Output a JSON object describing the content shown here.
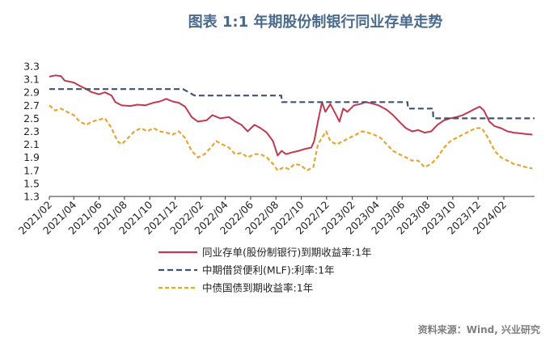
{
  "chart_data": {
    "type": "line",
    "title": "图表 1:1 年期股份制银行同业存单走势",
    "source": "资料来源：Wind, 兴业研究",
    "ylim": [
      1.3,
      3.3
    ],
    "yticks": [
      "1.3",
      "1.5",
      "1.7",
      "1.9",
      "2.1",
      "2.3",
      "2.5",
      "2.7",
      "2.9",
      "3.1",
      "3.3"
    ],
    "xlim": [
      "2021-02-01",
      "2024-04-15"
    ],
    "xticks": [
      {
        "date": "2021-02-01",
        "label": "2021/02"
      },
      {
        "date": "2021-04-01",
        "label": "2021/04"
      },
      {
        "date": "2021-06-01",
        "label": "2021/06"
      },
      {
        "date": "2021-08-01",
        "label": "2021/08"
      },
      {
        "date": "2021-10-01",
        "label": "2021/10"
      },
      {
        "date": "2021-12-01",
        "label": "2021/12"
      },
      {
        "date": "2022-02-01",
        "label": "2022/02"
      },
      {
        "date": "2022-04-01",
        "label": "2022/04"
      },
      {
        "date": "2022-06-01",
        "label": "2022/06"
      },
      {
        "date": "2022-08-01",
        "label": "2022/08"
      },
      {
        "date": "2022-10-01",
        "label": "2022/10"
      },
      {
        "date": "2022-12-01",
        "label": "2022/12"
      },
      {
        "date": "2023-02-01",
        "label": "2023/02"
      },
      {
        "date": "2023-04-01",
        "label": "2023/04"
      },
      {
        "date": "2023-06-01",
        "label": "2023/06"
      },
      {
        "date": "2023-08-01",
        "label": "2023/08"
      },
      {
        "date": "2023-10-01",
        "label": "2023/10"
      },
      {
        "date": "2023-12-01",
        "label": "2023/12"
      },
      {
        "date": "2024-02-01",
        "label": "2024/02"
      }
    ],
    "legend": "bottom",
    "series": [
      {
        "name": "同业存单(股份制银行)到期收益率:1年",
        "color": "#c0394f",
        "style": "solid",
        "points": [
          [
            "2021-02-01",
            3.14
          ],
          [
            "2021-02-15",
            3.16
          ],
          [
            "2021-03-01",
            3.15
          ],
          [
            "2021-03-10",
            3.08
          ],
          [
            "2021-04-01",
            3.05
          ],
          [
            "2021-04-15",
            3.0
          ],
          [
            "2021-05-01",
            2.95
          ],
          [
            "2021-05-15",
            2.9
          ],
          [
            "2021-06-01",
            2.87
          ],
          [
            "2021-06-15",
            2.9
          ],
          [
            "2021-07-01",
            2.85
          ],
          [
            "2021-07-10",
            2.75
          ],
          [
            "2021-07-25",
            2.7
          ],
          [
            "2021-08-15",
            2.69
          ],
          [
            "2021-09-01",
            2.71
          ],
          [
            "2021-09-20",
            2.7
          ],
          [
            "2021-10-10",
            2.74
          ],
          [
            "2021-10-25",
            2.76
          ],
          [
            "2021-11-10",
            2.8
          ],
          [
            "2021-11-25",
            2.76
          ],
          [
            "2021-12-10",
            2.74
          ],
          [
            "2021-12-25",
            2.68
          ],
          [
            "2022-01-10",
            2.52
          ],
          [
            "2022-01-25",
            2.45
          ],
          [
            "2022-02-15",
            2.47
          ],
          [
            "2022-03-01",
            2.55
          ],
          [
            "2022-03-20",
            2.5
          ],
          [
            "2022-04-10",
            2.52
          ],
          [
            "2022-04-25",
            2.45
          ],
          [
            "2022-05-10",
            2.4
          ],
          [
            "2022-05-25",
            2.3
          ],
          [
            "2022-06-10",
            2.4
          ],
          [
            "2022-06-25",
            2.35
          ],
          [
            "2022-07-10",
            2.28
          ],
          [
            "2022-07-25",
            2.15
          ],
          [
            "2022-08-05",
            1.93
          ],
          [
            "2022-08-15",
            2.0
          ],
          [
            "2022-08-25",
            1.95
          ],
          [
            "2022-09-10",
            1.98
          ],
          [
            "2022-09-25",
            2.0
          ],
          [
            "2022-10-10",
            2.03
          ],
          [
            "2022-10-25",
            2.05
          ],
          [
            "2022-11-01",
            2.15
          ],
          [
            "2022-11-10",
            2.45
          ],
          [
            "2022-11-20",
            2.75
          ],
          [
            "2022-11-28",
            2.6
          ],
          [
            "2022-12-10",
            2.72
          ],
          [
            "2022-12-20",
            2.6
          ],
          [
            "2023-01-01",
            2.45
          ],
          [
            "2023-01-10",
            2.65
          ],
          [
            "2023-01-20",
            2.6
          ],
          [
            "2023-02-05",
            2.7
          ],
          [
            "2023-02-20",
            2.72
          ],
          [
            "2023-03-05",
            2.75
          ],
          [
            "2023-03-20",
            2.73
          ],
          [
            "2023-04-05",
            2.7
          ],
          [
            "2023-04-25",
            2.63
          ],
          [
            "2023-05-10",
            2.55
          ],
          [
            "2023-05-25",
            2.45
          ],
          [
            "2023-06-10",
            2.35
          ],
          [
            "2023-06-25",
            2.3
          ],
          [
            "2023-07-10",
            2.32
          ],
          [
            "2023-07-25",
            2.28
          ],
          [
            "2023-08-10",
            2.3
          ],
          [
            "2023-08-25",
            2.4
          ],
          [
            "2023-09-10",
            2.47
          ],
          [
            "2023-09-25",
            2.5
          ],
          [
            "2023-10-10",
            2.52
          ],
          [
            "2023-10-25",
            2.55
          ],
          [
            "2023-11-10",
            2.6
          ],
          [
            "2023-11-25",
            2.65
          ],
          [
            "2023-12-05",
            2.68
          ],
          [
            "2023-12-15",
            2.62
          ],
          [
            "2023-12-28",
            2.45
          ],
          [
            "2024-01-10",
            2.38
          ],
          [
            "2024-01-25",
            2.35
          ],
          [
            "2024-02-10",
            2.3
          ],
          [
            "2024-02-25",
            2.28
          ],
          [
            "2024-03-10",
            2.27
          ],
          [
            "2024-03-25",
            2.26
          ],
          [
            "2024-04-10",
            2.25
          ]
        ]
      },
      {
        "name": "中期借贷便利(MLF):利率:1年",
        "color": "#3f5370",
        "style": "dashed",
        "points": [
          [
            "2021-02-01",
            2.95
          ],
          [
            "2021-12-20",
            2.95
          ],
          [
            "2022-01-17",
            2.85
          ],
          [
            "2022-08-14",
            2.85
          ],
          [
            "2022-08-15",
            2.75
          ],
          [
            "2023-06-14",
            2.75
          ],
          [
            "2023-06-15",
            2.65
          ],
          [
            "2023-08-14",
            2.65
          ],
          [
            "2023-08-15",
            2.5
          ],
          [
            "2024-04-15",
            2.5
          ]
        ]
      },
      {
        "name": "中债国债到期收益率:1年",
        "color": "#e6a630",
        "style": "dashed",
        "points": [
          [
            "2021-02-01",
            2.7
          ],
          [
            "2021-02-15",
            2.62
          ],
          [
            "2021-03-01",
            2.65
          ],
          [
            "2021-03-15",
            2.6
          ],
          [
            "2021-04-01",
            2.55
          ],
          [
            "2021-04-15",
            2.45
          ],
          [
            "2021-05-01",
            2.4
          ],
          [
            "2021-05-15",
            2.45
          ],
          [
            "2021-06-01",
            2.48
          ],
          [
            "2021-06-15",
            2.5
          ],
          [
            "2021-07-01",
            2.35
          ],
          [
            "2021-07-15",
            2.15
          ],
          [
            "2021-07-25",
            2.1
          ],
          [
            "2021-08-10",
            2.2
          ],
          [
            "2021-08-25",
            2.3
          ],
          [
            "2021-09-10",
            2.35
          ],
          [
            "2021-09-25",
            2.3
          ],
          [
            "2021-10-10",
            2.35
          ],
          [
            "2021-10-25",
            2.3
          ],
          [
            "2021-11-10",
            2.28
          ],
          [
            "2021-11-25",
            2.25
          ],
          [
            "2021-12-10",
            2.3
          ],
          [
            "2021-12-25",
            2.2
          ],
          [
            "2022-01-10",
            2.0
          ],
          [
            "2022-01-25",
            1.9
          ],
          [
            "2022-02-10",
            1.95
          ],
          [
            "2022-02-25",
            2.05
          ],
          [
            "2022-03-10",
            2.15
          ],
          [
            "2022-03-25",
            2.1
          ],
          [
            "2022-04-10",
            2.05
          ],
          [
            "2022-04-25",
            1.95
          ],
          [
            "2022-05-10",
            1.97
          ],
          [
            "2022-05-25",
            1.9
          ],
          [
            "2022-06-10",
            1.95
          ],
          [
            "2022-06-25",
            1.95
          ],
          [
            "2022-07-10",
            1.9
          ],
          [
            "2022-07-25",
            1.8
          ],
          [
            "2022-08-05",
            1.7
          ],
          [
            "2022-08-20",
            1.75
          ],
          [
            "2022-09-01",
            1.72
          ],
          [
            "2022-09-15",
            1.8
          ],
          [
            "2022-09-30",
            1.78
          ],
          [
            "2022-10-15",
            1.7
          ],
          [
            "2022-10-30",
            1.75
          ],
          [
            "2022-11-10",
            2.1
          ],
          [
            "2022-11-20",
            2.2
          ],
          [
            "2022-11-30",
            2.3
          ],
          [
            "2022-12-10",
            2.15
          ],
          [
            "2022-12-25",
            2.1
          ],
          [
            "2023-01-10",
            2.15
          ],
          [
            "2023-01-25",
            2.2
          ],
          [
            "2023-02-10",
            2.25
          ],
          [
            "2023-02-25",
            2.3
          ],
          [
            "2023-03-10",
            2.28
          ],
          [
            "2023-03-25",
            2.25
          ],
          [
            "2023-04-10",
            2.2
          ],
          [
            "2023-04-25",
            2.1
          ],
          [
            "2023-05-10",
            2.0
          ],
          [
            "2023-05-25",
            1.95
          ],
          [
            "2023-06-10",
            1.9
          ],
          [
            "2023-06-25",
            1.85
          ],
          [
            "2023-07-10",
            1.85
          ],
          [
            "2023-07-25",
            1.75
          ],
          [
            "2023-08-10",
            1.8
          ],
          [
            "2023-08-25",
            1.9
          ],
          [
            "2023-09-10",
            2.05
          ],
          [
            "2023-09-25",
            2.15
          ],
          [
            "2023-10-10",
            2.2
          ],
          [
            "2023-10-25",
            2.25
          ],
          [
            "2023-11-10",
            2.3
          ],
          [
            "2023-11-25",
            2.35
          ],
          [
            "2023-12-10",
            2.35
          ],
          [
            "2023-12-25",
            2.2
          ],
          [
            "2024-01-10",
            2.0
          ],
          [
            "2024-01-25",
            1.9
          ],
          [
            "2024-02-10",
            1.85
          ],
          [
            "2024-02-25",
            1.8
          ],
          [
            "2024-03-10",
            1.78
          ],
          [
            "2024-03-25",
            1.75
          ],
          [
            "2024-04-10",
            1.73
          ]
        ]
      }
    ]
  }
}
